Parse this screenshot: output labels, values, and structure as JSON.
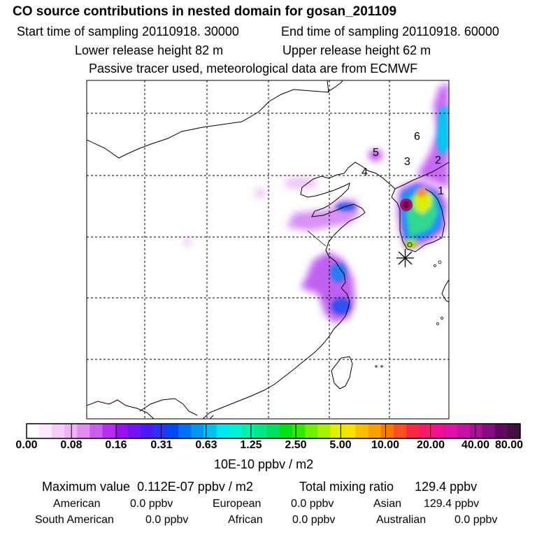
{
  "header": {
    "title": "CO  source contributions in nested domain for gosan_201109",
    "start_time": "Start time of sampling 20110918. 30000",
    "end_time": "End time of sampling 20110918. 60000",
    "lower_release": "Lower release height   82 m",
    "upper_release": "Upper release height   62 m",
    "tracer_note": "Passive tracer used, meteorological data are from ECMWF"
  },
  "map": {
    "region_labels": [
      "1",
      "2",
      "3",
      "4",
      "5",
      "6"
    ],
    "station_marker": "asterisk-icon"
  },
  "colorbar": {
    "ticks": [
      "0.00",
      "0.08",
      "0.16",
      "0.31",
      "0.63",
      "1.25",
      "2.50",
      "5.00",
      "10.00",
      "20.00",
      "40.00",
      "80.00"
    ],
    "units": "10E-10 ppbv / m2",
    "colors": [
      "#ffffff",
      "#fbe8fc",
      "#f5ccf8",
      "#efb0f4",
      "#e08af2",
      "#cc5cf0",
      "#b82ef0",
      "#9e10f2",
      "#7412f4",
      "#4c18f4",
      "#3030f0",
      "#0048f2",
      "#0070f4",
      "#0098f4",
      "#00c0f4",
      "#00e8f0",
      "#00f0d8",
      "#00f0b0",
      "#00e888",
      "#00e060",
      "#00e018",
      "#30e800",
      "#70f000",
      "#a8f000",
      "#e0f000",
      "#f8e000",
      "#f8c000",
      "#f8a000",
      "#f87800",
      "#f85020",
      "#f82840",
      "#f81868",
      "#f01090",
      "#e010a8",
      "#c810a8",
      "#a81098",
      "#880c80",
      "#600860",
      "#401040"
    ]
  },
  "summary": {
    "max_value_label": "Maximum value",
    "max_value": "0.112E-07 ppbv / m2",
    "total_label": "Total mixing ratio",
    "total_value": "129.4 ppbv",
    "rows": [
      [
        {
          "label": "American",
          "value": "0.0 ppbv"
        },
        {
          "label": "European",
          "value": "0.0 ppbv"
        },
        {
          "label": "Asian",
          "value": "129.4 ppbv"
        }
      ],
      [
        {
          "label": "South American",
          "value": "0.0 ppbv"
        },
        {
          "label": "African",
          "value": "0.0 ppbv"
        },
        {
          "label": "Australian",
          "value": "0.0 ppbv"
        }
      ]
    ]
  }
}
